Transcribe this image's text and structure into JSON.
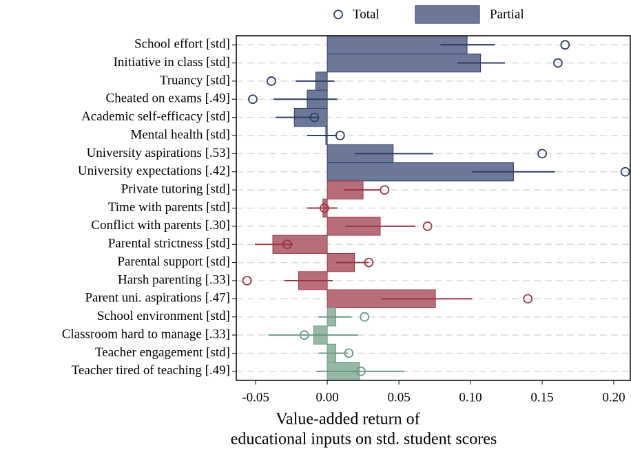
{
  "chart_data": {
    "type": "bar_ci",
    "xlabel": [
      "Value-added return of",
      "educational inputs on std. student scores"
    ],
    "categories": [
      "School effort [std]",
      "Initiative in class [std]",
      "Truancy [std]",
      "Cheated on exams [.49]",
      "Academic self-efficacy [std]",
      "Mental health [std]",
      "University aspirations [.53]",
      "University expectations [.42]",
      "Private tutoring [std]",
      "Time with parents [std]",
      "Conflict with parents [.30]",
      "Parental strictness [std]",
      "Parental support [std]",
      "Harsh parenting [.33]",
      "Parent uni. aspirations [.47]",
      "School environment [std]",
      "Classroom hard to manage [.33]",
      "Teacher engagement [std]",
      "Teacher tired of teaching [.49]"
    ],
    "series": [
      {
        "name": "Total",
        "values": [
          0.166,
          0.161,
          -0.039,
          -0.052,
          -0.009,
          0.009,
          0.15,
          0.208,
          0.04,
          -0.002,
          0.07,
          -0.028,
          0.029,
          -0.056,
          0.14,
          0.026,
          -0.016,
          0.015,
          0.0235
        ]
      },
      {
        "name": "Partial",
        "values": [
          0.0976,
          0.107,
          -0.008,
          -0.014,
          -0.023,
          -0.001,
          0.046,
          0.13,
          0.025,
          -0.003,
          0.037,
          -0.038,
          0.019,
          -0.02,
          0.0755,
          0.006,
          -0.0095,
          0.006,
          0.0225
        ],
        "ci_low": [
          0.079,
          0.091,
          -0.022,
          -0.0375,
          -0.036,
          -0.014,
          0.019,
          0.101,
          0.0115,
          -0.014,
          0.0125,
          -0.0505,
          0.006,
          -0.03,
          0.0375,
          -0.006,
          -0.041,
          -0.006,
          -0.0077
        ],
        "ci_high": [
          0.117,
          0.124,
          0.005,
          0.007,
          -0.006,
          0.006,
          0.074,
          0.159,
          0.0365,
          0.007,
          0.0615,
          -0.024,
          0.029,
          0.004,
          0.101,
          0.017,
          0.0215,
          0.0145,
          0.054
        ]
      }
    ],
    "bar_colors": [
      "#6b7898",
      "#6b7898",
      "#6b7898",
      "#6b7898",
      "#6b7898",
      "#6b7898",
      "#6b7898",
      "#6b7898",
      "#b86e78",
      "#b86e78",
      "#b86e78",
      "#b86e78",
      "#b86e78",
      "#b86e78",
      "#b86e78",
      "#98b8a6",
      "#98b8a6",
      "#98b8a6",
      "#98b8a6"
    ],
    "line_colors": [
      "#2e3d66",
      "#2e3d66",
      "#2e3d66",
      "#2e3d66",
      "#2e3d66",
      "#2e3d66",
      "#2e3d66",
      "#2e3d66",
      "#9a3644",
      "#9a3644",
      "#9a3644",
      "#9a3644",
      "#9a3644",
      "#9a3644",
      "#9a3644",
      "#6a9a84",
      "#6a9a84",
      "#6a9a84",
      "#6a9a84"
    ],
    "xlim": [
      -0.0635,
      0.212
    ],
    "xticks": [
      -0.05,
      {
        "value": 0,
        "label": "0.00"
      },
      0.05,
      {
        "value": 0.1,
        "label": "0.10"
      },
      0.15,
      {
        "value": 0.2,
        "label": "0.20"
      }
    ],
    "grid": true,
    "legend": "top"
  }
}
